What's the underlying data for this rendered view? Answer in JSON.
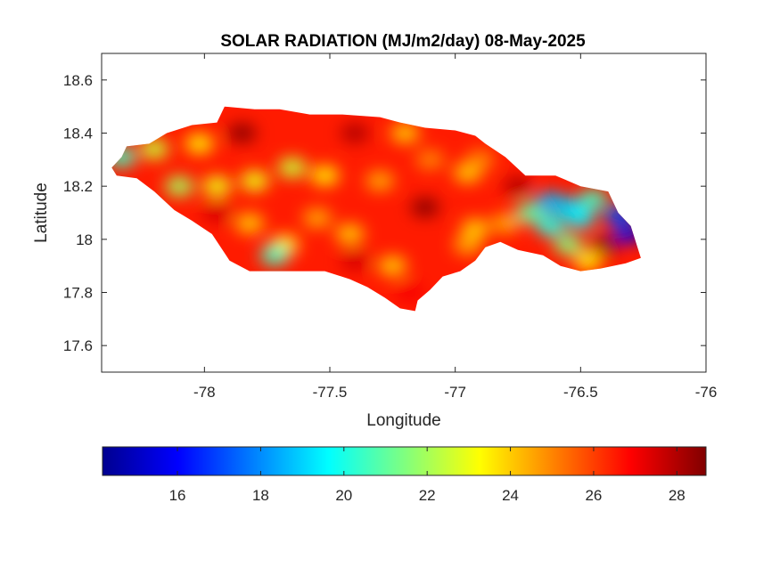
{
  "chart_data": {
    "type": "heatmap",
    "title": "SOLAR RADIATION (MJ/m2/day) 08-May-2025",
    "xlabel": "Longitude",
    "ylabel": "Latitude",
    "xlim": [
      -78.41,
      -76.0
    ],
    "ylim": [
      17.5,
      18.7
    ],
    "xticks": [
      -78,
      -77.5,
      -77,
      -76.5,
      -76
    ],
    "xtick_labels": [
      "-78",
      "-77.5",
      "-77",
      "-76.5",
      "-76"
    ],
    "yticks": [
      17.6,
      17.8,
      18.0,
      18.2,
      18.4,
      18.6
    ],
    "ytick_labels": [
      "17.6",
      "17.8",
      "18",
      "18.2",
      "18.4",
      "18.6"
    ],
    "grid": false,
    "colormap": "jet",
    "colorbar": {
      "location": "bottom",
      "clim": [
        14.2,
        28.7
      ],
      "ticks": [
        16,
        18,
        20,
        22,
        24,
        26,
        28
      ],
      "tick_labels": [
        "16",
        "18",
        "20",
        "22",
        "24",
        "26",
        "28"
      ]
    },
    "region_outline": [
      [
        -78.37,
        18.27
      ],
      [
        -78.33,
        18.31
      ],
      [
        -78.31,
        18.35
      ],
      [
        -78.22,
        18.36
      ],
      [
        -78.15,
        18.4
      ],
      [
        -78.05,
        18.43
      ],
      [
        -77.95,
        18.44
      ],
      [
        -77.92,
        18.5
      ],
      [
        -77.8,
        18.49
      ],
      [
        -77.7,
        18.49
      ],
      [
        -77.58,
        18.47
      ],
      [
        -77.45,
        18.47
      ],
      [
        -77.3,
        18.46
      ],
      [
        -77.22,
        18.44
      ],
      [
        -77.12,
        18.42
      ],
      [
        -77.0,
        18.41
      ],
      [
        -76.92,
        18.39
      ],
      [
        -76.88,
        18.36
      ],
      [
        -76.8,
        18.31
      ],
      [
        -76.72,
        18.24
      ],
      [
        -76.6,
        18.24
      ],
      [
        -76.5,
        18.2
      ],
      [
        -76.39,
        18.18
      ],
      [
        -76.35,
        18.1
      ],
      [
        -76.3,
        18.05
      ],
      [
        -76.26,
        17.93
      ],
      [
        -76.32,
        17.91
      ],
      [
        -76.42,
        17.89
      ],
      [
        -76.5,
        17.88
      ],
      [
        -76.58,
        17.9
      ],
      [
        -76.65,
        17.94
      ],
      [
        -76.75,
        17.96
      ],
      [
        -76.82,
        17.99
      ],
      [
        -76.88,
        17.97
      ],
      [
        -76.92,
        17.92
      ],
      [
        -76.98,
        17.88
      ],
      [
        -77.05,
        17.86
      ],
      [
        -77.1,
        17.81
      ],
      [
        -77.15,
        17.77
      ],
      [
        -77.16,
        17.73
      ],
      [
        -77.22,
        17.74
      ],
      [
        -77.28,
        17.78
      ],
      [
        -77.35,
        17.82
      ],
      [
        -77.42,
        17.85
      ],
      [
        -77.52,
        17.88
      ],
      [
        -77.65,
        17.88
      ],
      [
        -77.75,
        17.88
      ],
      [
        -77.82,
        17.88
      ],
      [
        -77.9,
        17.92
      ],
      [
        -77.97,
        18.02
      ],
      [
        -78.05,
        18.07
      ],
      [
        -78.12,
        18.11
      ],
      [
        -78.2,
        18.18
      ],
      [
        -78.27,
        18.23
      ],
      [
        -78.35,
        18.24
      ]
    ],
    "features": [
      {
        "lon": -77.8,
        "lat": 18.22,
        "value": 23.0
      },
      {
        "lon": -77.65,
        "lat": 18.27,
        "value": 22.5
      },
      {
        "lon": -77.52,
        "lat": 18.24,
        "value": 23.5
      },
      {
        "lon": -77.95,
        "lat": 18.2,
        "value": 23.0
      },
      {
        "lon": -78.1,
        "lat": 18.2,
        "value": 22.0
      },
      {
        "lon": -78.02,
        "lat": 18.36,
        "value": 23.5
      },
      {
        "lon": -78.2,
        "lat": 18.34,
        "value": 22.5
      },
      {
        "lon": -78.33,
        "lat": 18.31,
        "value": 20.5
      },
      {
        "lon": -77.82,
        "lat": 18.06,
        "value": 24.0
      },
      {
        "lon": -77.68,
        "lat": 17.98,
        "value": 23.5
      },
      {
        "lon": -77.72,
        "lat": 17.94,
        "value": 20.5
      },
      {
        "lon": -77.42,
        "lat": 18.02,
        "value": 24.0
      },
      {
        "lon": -77.55,
        "lat": 18.08,
        "value": 24.5
      },
      {
        "lon": -77.3,
        "lat": 18.22,
        "value": 24.5
      },
      {
        "lon": -77.2,
        "lat": 18.4,
        "value": 24.0
      },
      {
        "lon": -77.25,
        "lat": 17.9,
        "value": 24.0
      },
      {
        "lon": -77.1,
        "lat": 18.3,
        "value": 25.0
      },
      {
        "lon": -76.95,
        "lat": 18.25,
        "value": 24.0
      },
      {
        "lon": -76.9,
        "lat": 18.3,
        "value": 25.0
      },
      {
        "lon": -76.92,
        "lat": 18.04,
        "value": 24.0
      },
      {
        "lon": -76.8,
        "lat": 18.06,
        "value": 24.5
      },
      {
        "lon": -76.95,
        "lat": 17.98,
        "value": 24.5
      },
      {
        "lon": -76.7,
        "lat": 18.1,
        "value": 21.0
      },
      {
        "lon": -76.62,
        "lat": 18.14,
        "value": 18.5
      },
      {
        "lon": -76.55,
        "lat": 18.12,
        "value": 19.0
      },
      {
        "lon": -76.62,
        "lat": 18.05,
        "value": 20.0
      },
      {
        "lon": -76.5,
        "lat": 18.08,
        "value": 19.5
      },
      {
        "lon": -76.45,
        "lat": 18.15,
        "value": 20.5
      },
      {
        "lon": -76.55,
        "lat": 17.98,
        "value": 21.5
      },
      {
        "lon": -76.35,
        "lat": 18.09,
        "value": 17.0
      },
      {
        "lon": -76.31,
        "lat": 18.02,
        "value": 15.5
      },
      {
        "lon": -76.47,
        "lat": 17.92,
        "value": 23.5
      },
      {
        "lon": -77.12,
        "lat": 18.12,
        "value": 28.5
      },
      {
        "lon": -77.85,
        "lat": 18.4,
        "value": 28.5
      },
      {
        "lon": -77.4,
        "lat": 18.4,
        "value": 28.0
      },
      {
        "lon": -76.75,
        "lat": 18.2,
        "value": 28.0
      },
      {
        "lon": -76.4,
        "lat": 17.98,
        "value": 28.5
      },
      {
        "lon": -77.95,
        "lat": 18.1,
        "value": 27.5
      },
      {
        "lon": -77.4,
        "lat": 17.92,
        "value": 27.5
      },
      {
        "lon": -77.18,
        "lat": 17.8,
        "value": 27.0
      }
    ],
    "background_value": 26.5
  }
}
